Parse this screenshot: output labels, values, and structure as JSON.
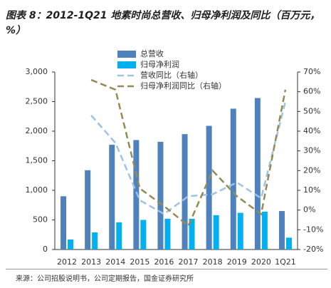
{
  "chart_data": {
    "type": "bar",
    "title": "图表 8：2012-1Q21 地素时尚总营收、归母净利润及同比（百万元，%）",
    "source": "来源：公司招股说明书，公司定期报告，国金证券研究所",
    "categories": [
      "2012",
      "2013",
      "2014",
      "2015",
      "2016",
      "2017",
      "2018",
      "2019",
      "2020",
      "1Q21"
    ],
    "series": [
      {
        "name": "总营收",
        "type": "bar",
        "color": "#4f81bd",
        "values": [
          900,
          1340,
          1770,
          1850,
          1820,
          1950,
          2090,
          2380,
          2560,
          650
        ]
      },
      {
        "name": "归母净利润",
        "type": "bar",
        "color": "#00b0f0",
        "values": [
          170,
          290,
          460,
          500,
          520,
          520,
          580,
          620,
          640,
          200
        ]
      },
      {
        "name": "营收同比（右轴）",
        "type": "line",
        "axis": "y2",
        "color": "#9dc3e6",
        "values": [
          null,
          48,
          34,
          5,
          -2,
          7,
          8,
          14,
          6,
          55
        ]
      },
      {
        "name": "归母净利润同比（右轴）",
        "type": "line",
        "axis": "y2",
        "color": "#948a54",
        "values": [
          null,
          66,
          61,
          11,
          2,
          -8,
          20,
          7,
          -2,
          61
        ]
      }
    ],
    "ylim": [
      0,
      3000
    ],
    "yticks": [
      0,
      500,
      {
        "value": 1000,
        "label": "1,000"
      },
      {
        "value": 1500,
        "label": "1,500"
      },
      {
        "value": 2000,
        "label": "2,000"
      },
      {
        "value": 2500,
        "label": "2,500"
      },
      {
        "value": 3000,
        "label": "3,000"
      }
    ],
    "y2lim": [
      -20,
      70
    ],
    "y2ticks": [
      {
        "value": -20,
        "label": "-20%"
      },
      {
        "value": -10,
        "label": "-10%"
      },
      {
        "value": 0,
        "label": "0%"
      },
      {
        "value": 10,
        "label": "10%"
      },
      {
        "value": 20,
        "label": "20%"
      },
      {
        "value": 30,
        "label": "30%"
      },
      {
        "value": 40,
        "label": "40%"
      },
      {
        "value": 50,
        "label": "50%"
      },
      {
        "value": 60,
        "label": "60%"
      },
      {
        "value": 70,
        "label": "70%"
      }
    ]
  }
}
